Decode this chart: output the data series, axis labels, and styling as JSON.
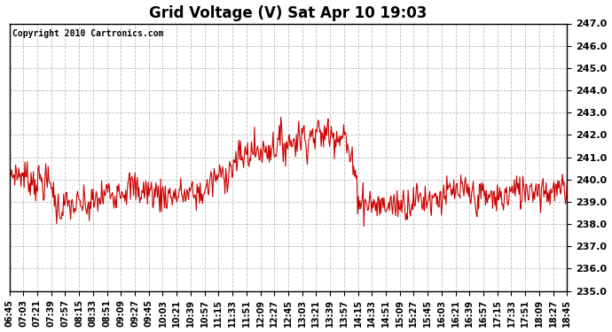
{
  "title": "Grid Voltage (V) Sat Apr 10 19:03",
  "copyright_text": "Copyright 2010 Cartronics.com",
  "ylim": [
    235.0,
    247.0
  ],
  "yticks": [
    235.0,
    236.0,
    237.0,
    238.0,
    239.0,
    240.0,
    241.0,
    242.0,
    243.0,
    244.0,
    245.0,
    246.0,
    247.0
  ],
  "line_color": "#cc0000",
  "background_color": "#ffffff",
  "plot_bg_color": "#ffffff",
  "grid_color": "#aaaaaa",
  "x_labels": [
    "06:45",
    "07:03",
    "07:21",
    "07:39",
    "07:57",
    "08:15",
    "08:33",
    "08:51",
    "09:09",
    "09:27",
    "09:45",
    "10:03",
    "10:21",
    "10:39",
    "10:57",
    "11:15",
    "11:33",
    "11:51",
    "12:09",
    "12:27",
    "12:45",
    "13:03",
    "13:21",
    "13:39",
    "13:57",
    "14:15",
    "14:33",
    "14:51",
    "15:09",
    "15:27",
    "15:45",
    "16:03",
    "16:21",
    "16:39",
    "16:57",
    "17:15",
    "17:33",
    "17:51",
    "18:09",
    "18:27",
    "18:45"
  ],
  "title_fontsize": 12,
  "tick_fontsize": 8,
  "copyright_fontsize": 7,
  "linewidth": 0.8,
  "figwidth": 6.9,
  "figheight": 3.75,
  "dpi": 100
}
